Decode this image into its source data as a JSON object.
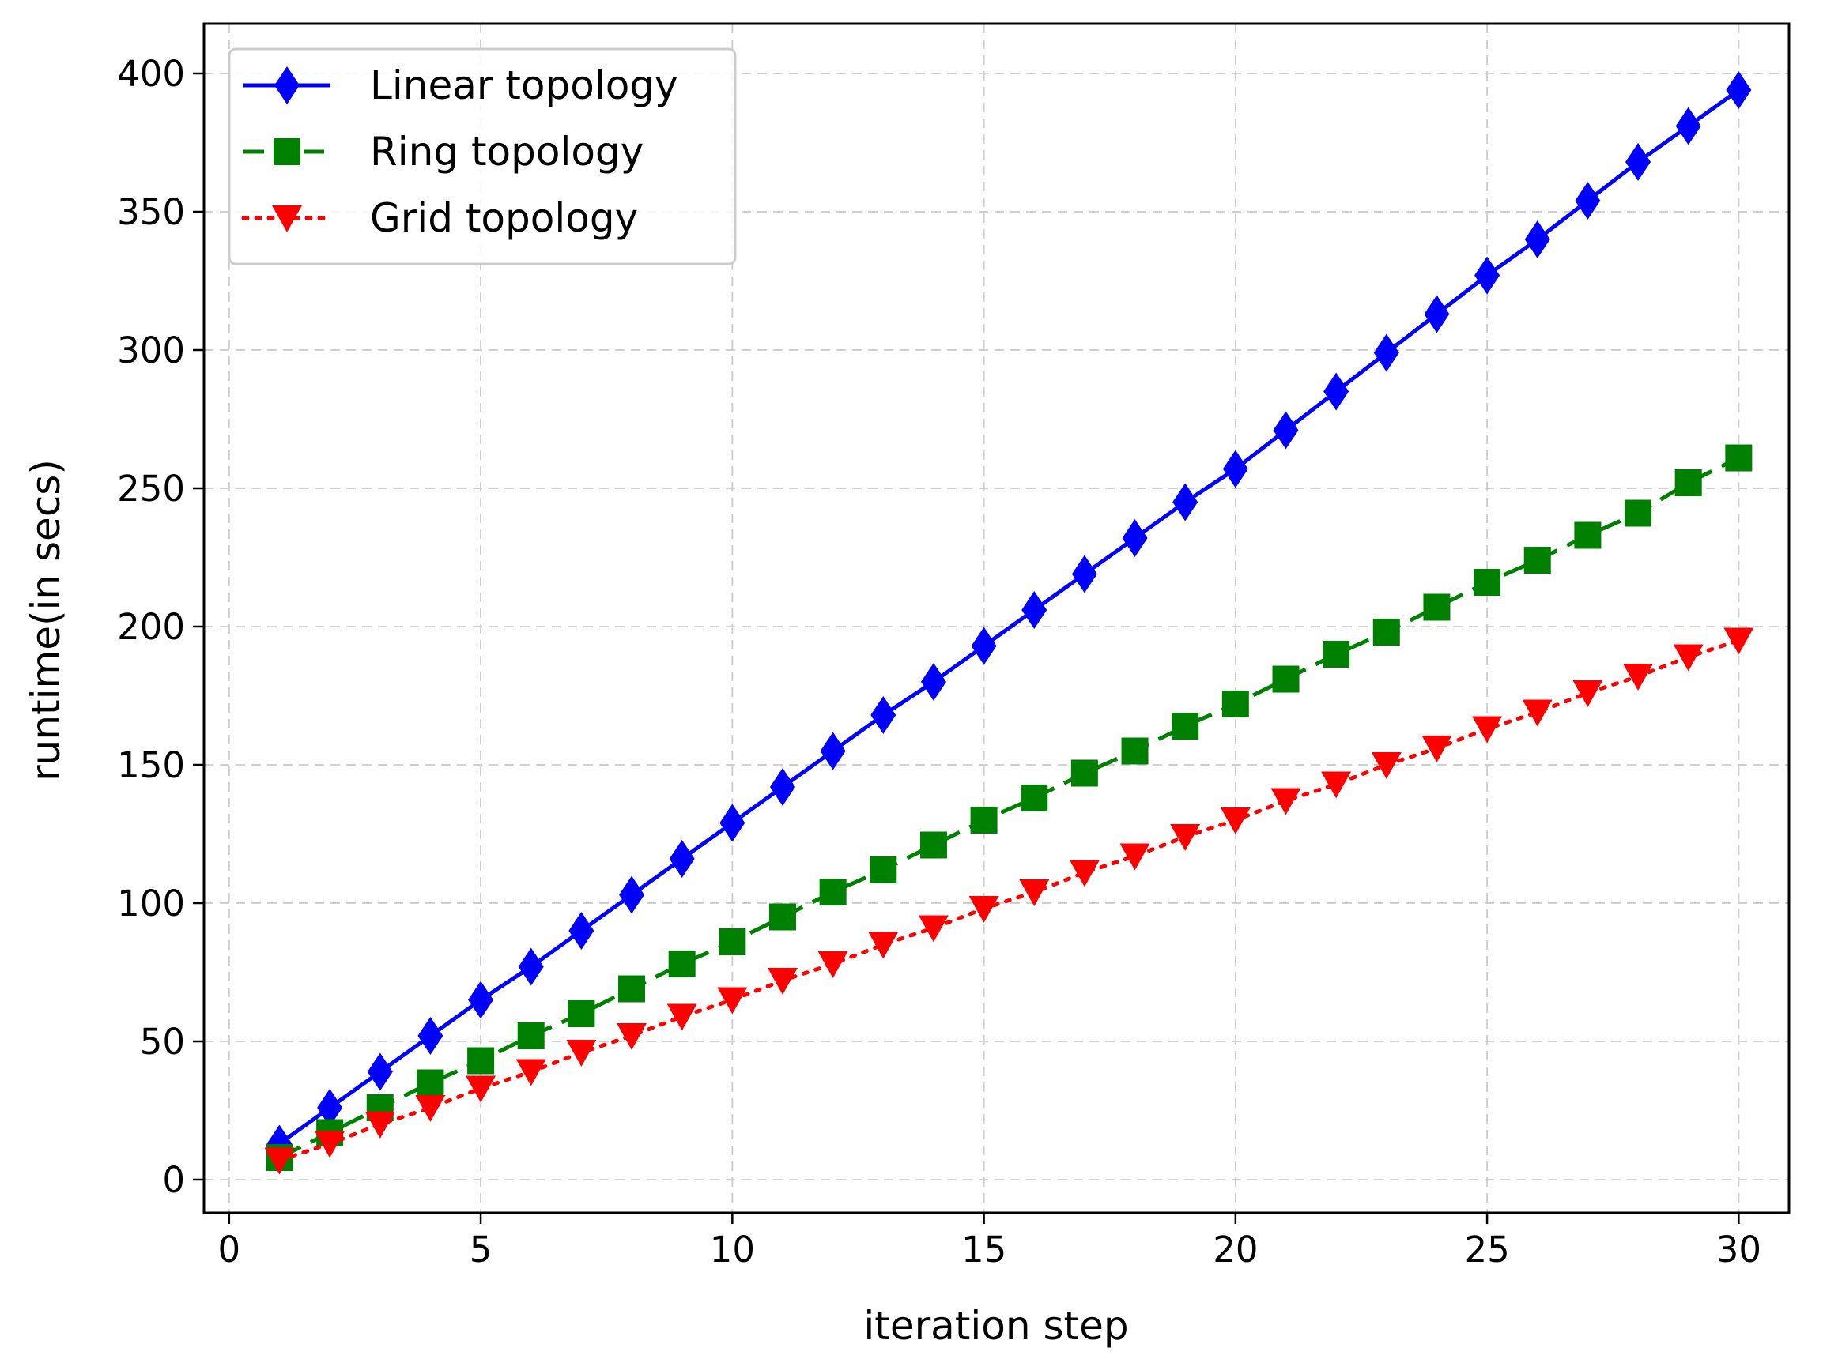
{
  "chart_data": {
    "type": "line",
    "title": "",
    "xlabel": "iteration step",
    "ylabel": "runtime(in secs)",
    "xlim": [
      -0.5,
      31.0
    ],
    "ylim": [
      -12,
      418
    ],
    "xticks": [
      0,
      5,
      10,
      15,
      20,
      25,
      30
    ],
    "yticks": [
      0,
      50,
      100,
      150,
      200,
      250,
      300,
      350,
      400
    ],
    "grid": true,
    "legend_position": "top-left",
    "x": [
      1,
      2,
      3,
      4,
      5,
      6,
      7,
      8,
      9,
      10,
      11,
      12,
      13,
      14,
      15,
      16,
      17,
      18,
      19,
      20,
      21,
      22,
      23,
      24,
      25,
      26,
      27,
      28,
      29,
      30
    ],
    "series": [
      {
        "name": "Linear topology",
        "color": "#0000ff",
        "line_style": "solid",
        "marker": "diamond",
        "values": [
          13,
          26,
          39,
          52,
          65,
          77,
          90,
          103,
          116,
          129,
          142,
          155,
          168,
          180,
          193,
          206,
          219,
          232,
          245,
          257,
          271,
          285,
          299,
          313,
          327,
          340,
          354,
          368,
          381,
          394
        ]
      },
      {
        "name": "Ring topology",
        "color": "#008000",
        "line_style": "dashed",
        "marker": "square",
        "values": [
          8,
          17,
          26,
          35,
          43,
          52,
          60,
          69,
          78,
          86,
          95,
          104,
          112,
          121,
          130,
          138,
          147,
          155,
          164,
          172,
          181,
          190,
          198,
          207,
          216,
          224,
          233,
          241,
          252,
          261
        ]
      },
      {
        "name": "Grid topology",
        "color": "#ff0000",
        "line_style": "dotted",
        "marker": "triangle-down",
        "values": [
          7,
          13,
          20,
          26,
          33,
          39,
          46,
          52,
          59,
          65,
          72,
          78,
          85,
          91,
          98,
          104,
          111,
          117,
          124,
          130,
          137,
          143,
          150,
          156,
          163,
          169,
          176,
          182,
          189,
          195
        ]
      }
    ]
  }
}
